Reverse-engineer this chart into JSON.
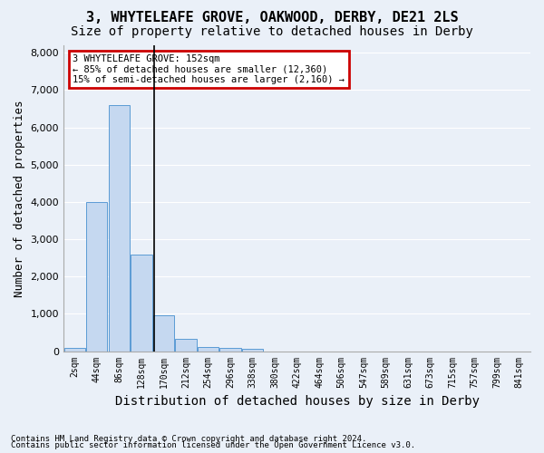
{
  "title1": "3, WHYTELEAFE GROVE, OAKWOOD, DERBY, DE21 2LS",
  "title2": "Size of property relative to detached houses in Derby",
  "xlabel": "Distribution of detached houses by size in Derby",
  "ylabel": "Number of detached properties",
  "footnote1": "Contains HM Land Registry data © Crown copyright and database right 2024.",
  "footnote2": "Contains public sector information licensed under the Open Government Licence v3.0.",
  "annotation_line1": "3 WHYTELEAFE GROVE: 152sqm",
  "annotation_line2": "← 85% of detached houses are smaller (12,360)",
  "annotation_line3": "15% of semi-detached houses are larger (2,160) →",
  "bar_values": [
    75,
    4000,
    6600,
    2600,
    950,
    330,
    110,
    80,
    50,
    0,
    0,
    0,
    0,
    0,
    0,
    0,
    0,
    0,
    0,
    0,
    0
  ],
  "bar_labels": [
    "2sqm",
    "44sqm",
    "86sqm",
    "128sqm",
    "170sqm",
    "212sqm",
    "254sqm",
    "296sqm",
    "338sqm",
    "380sqm",
    "422sqm",
    "464sqm",
    "506sqm",
    "547sqm",
    "589sqm",
    "631sqm",
    "673sqm",
    "715sqm",
    "757sqm",
    "799sqm",
    "841sqm"
  ],
  "ylim": [
    0,
    8200
  ],
  "yticks": [
    0,
    1000,
    2000,
    3000,
    4000,
    5000,
    6000,
    7000,
    8000
  ],
  "bar_color": "#c5d8f0",
  "bar_edge_color": "#5b9bd5",
  "bg_color": "#eaf0f8",
  "grid_color": "#ffffff",
  "annotation_box_color": "#ffffff",
  "annotation_box_edge": "#cc0000",
  "property_sqm": 152,
  "title1_fontsize": 11,
  "title2_fontsize": 10,
  "xlabel_fontsize": 10,
  "ylabel_fontsize": 9,
  "tick_fontsize": 8
}
